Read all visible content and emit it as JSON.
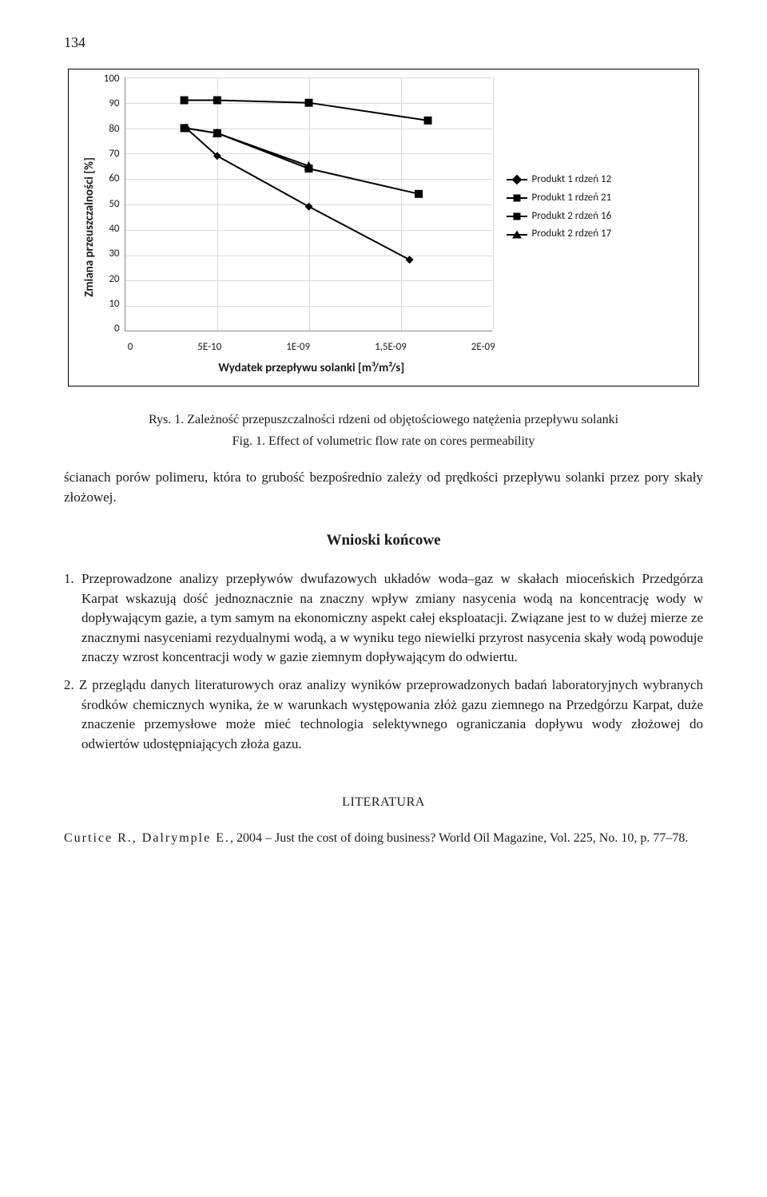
{
  "page_number": "134",
  "chart": {
    "type": "line",
    "ylabel": "Zmiana przeuszczalności [%]",
    "xlabel": "Wydatek przepływu solanki [m³/m²/s]",
    "xlim": [
      0,
      2e-09
    ],
    "ylim": [
      0,
      100
    ],
    "xticks": [
      "0",
      "5E-10",
      "1E-09",
      "1,5E-09",
      "2E-09"
    ],
    "yticks": [
      "100",
      "90",
      "80",
      "70",
      "60",
      "50",
      "40",
      "30",
      "20",
      "10",
      "0"
    ],
    "ytick_step": 10,
    "background_color": "#ffffff",
    "grid_color": "#d9d9d9",
    "line_color": "#000000",
    "line_width": 2,
    "marker_size": 9,
    "legend": [
      {
        "label": "Produkt 1 rdzeń 12",
        "marker": "diamond"
      },
      {
        "label": "Produkt 1 rdzeń 21",
        "marker": "square"
      },
      {
        "label": "Produkt 2 rdzeń 16",
        "marker": "square"
      },
      {
        "label": "Produkt 2 rdzeń 17",
        "marker": "triangle"
      }
    ],
    "series": [
      {
        "name": "Produkt 1 rdzeń 12",
        "marker": "diamond",
        "points": [
          [
            3.3e-10,
            80
          ],
          [
            5e-10,
            69
          ],
          [
            1e-09,
            49
          ],
          [
            1.55e-09,
            28
          ]
        ]
      },
      {
        "name": "Produkt 1 rdzeń 21",
        "marker": "square",
        "points": [
          [
            3.2e-10,
            91
          ],
          [
            5e-10,
            91
          ],
          [
            1e-09,
            90
          ],
          [
            1.65e-09,
            83
          ]
        ]
      },
      {
        "name": "Produkt 2 rdzeń 16",
        "marker": "square",
        "points": [
          [
            3.2e-10,
            80
          ],
          [
            5e-10,
            78
          ],
          [
            1e-09,
            64
          ],
          [
            1.6e-09,
            54
          ]
        ]
      },
      {
        "name": "Produkt 2 rdzeń 17",
        "marker": "triangle",
        "points": [
          [
            3.3e-10,
            80
          ],
          [
            5e-10,
            78
          ],
          [
            1e-09,
            65
          ]
        ]
      }
    ]
  },
  "caption_pl": "Rys. 1. Zależność przepuszczalności rdzeni od objętościowego natężenia przepływu solanki",
  "caption_en": "Fig. 1. Effect of volumetric flow rate on cores permeability",
  "lead_paragraph": "ścianach porów polimeru, która to grubość bezpośrednio zależy od prędkości przepływu solanki przez pory skały złożowej.",
  "section_heading": "Wnioski końcowe",
  "conclusions": [
    "1. Przeprowadzone analizy przepływów dwufazowych układów woda–gaz w skałach mioceńskich Przedgórza Karpat wskazują dość jednoznacznie na znaczny wpływ zmiany nasycenia wodą na koncentrację wody w dopływającym gazie, a tym samym na ekonomiczny aspekt całej eksploatacji. Związane jest to w dużej mierze ze znacznymi nasyceniami rezydualnymi wodą, a w wyniku tego niewielki przyrost nasycenia skały wodą powoduje znaczy wzrost koncentracji wody w gazie ziemnym dopływającym do odwiertu.",
    "2. Z przeglądu danych literaturowych oraz analizy wyników przeprowadzonych badań laboratoryjnych wybranych środków chemicznych wynika, że w warunkach występowania złóż gazu ziemnego na Przedgórzu Karpat, duże znaczenie przemysłowe może mieć technologia selektywnego ograniczania dopływu wody złożowej do odwiertów udostępniających złoża gazu."
  ],
  "literature_heading": "LITERATURA",
  "reference_authors": "Curtice R., Dalrymple E.",
  "reference_rest": ", 2004 – Just the cost of doing business? World Oil Magazine, Vol. 225, No. 10, p. 77–78."
}
